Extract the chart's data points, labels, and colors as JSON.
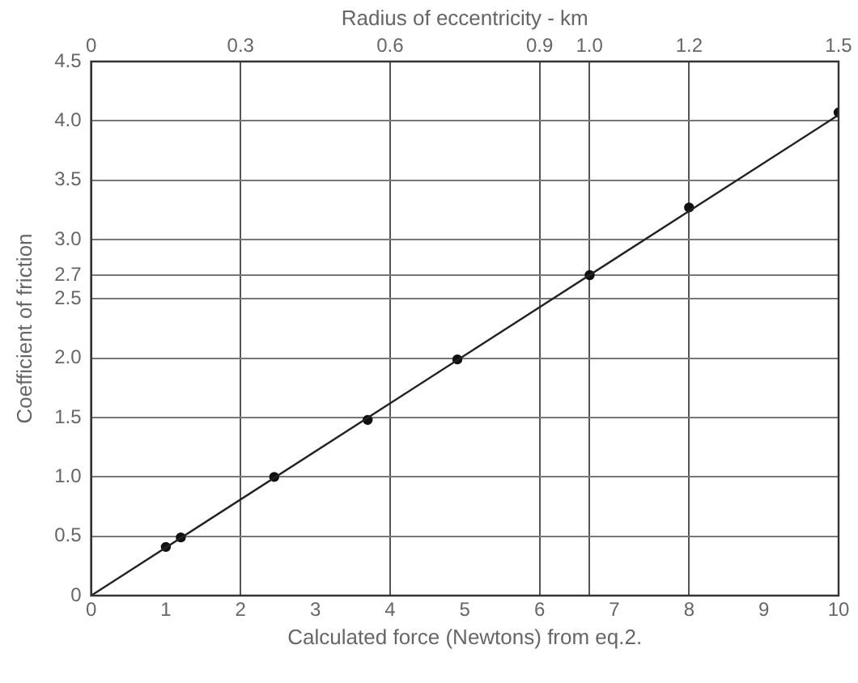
{
  "chart_data": {
    "type": "scatter",
    "xlabel": "Calculated force (Newtons) from eq.2.",
    "ylabel": "Coefficient of friction",
    "x2label": "Radius of eccentricity - km",
    "series": [
      {
        "type": "line",
        "color": "#222222",
        "x": [
          0,
          10
        ],
        "values": [
          0,
          4.05
        ],
        "marker": "none"
      },
      {
        "type": "scatter",
        "color": "#111111",
        "x": [
          1.0,
          1.2,
          2.45,
          3.7,
          4.9,
          6.67,
          8.0,
          10.0
        ],
        "values": [
          0.41,
          0.49,
          1.0,
          1.48,
          1.99,
          2.7,
          3.27,
          4.07
        ],
        "marker": "circle"
      }
    ],
    "xlim": [
      0,
      10
    ],
    "xticks": [
      0,
      1,
      2,
      3,
      4,
      5,
      6,
      7,
      8,
      9,
      10
    ],
    "x2lim": [
      0,
      1.5
    ],
    "x2ticks": [
      0,
      0.3,
      0.6,
      0.9,
      {
        "value": 1.0,
        "label": "1.0"
      },
      1.2,
      1.5
    ],
    "ylim": [
      0,
      4.5
    ],
    "yticks": [
      0,
      0.5,
      {
        "value": 1,
        "label": "1.0"
      },
      1.5,
      {
        "value": 2,
        "label": "2.0"
      },
      2.5,
      2.7,
      {
        "value": 3,
        "label": "3.0"
      },
      3.5,
      {
        "value": 4,
        "label": "4.0"
      },
      4.5
    ],
    "grid": true,
    "legend": false
  }
}
